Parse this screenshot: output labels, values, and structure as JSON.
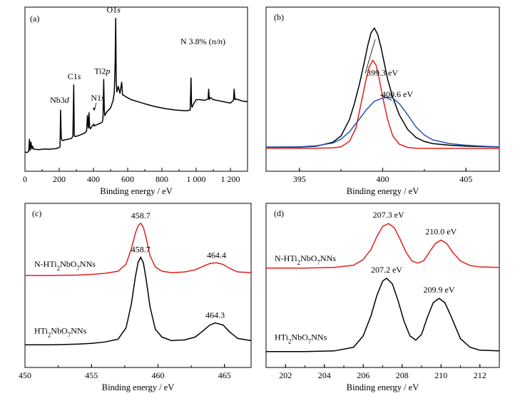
{
  "chart_data": [
    {
      "panel": "a",
      "type": "line",
      "panel_label": "(a)",
      "xlabel": "Binding energy / eV",
      "ylabel": "",
      "xlim": [
        0,
        1300
      ],
      "xticks": [
        0,
        200,
        400,
        600,
        800,
        1000,
        1200
      ],
      "xtick_labels": [
        "0",
        "200",
        "400",
        "600",
        "800",
        "1 000",
        "1 200"
      ],
      "note": "N 3.8% (n/n)",
      "series": [
        {
          "color": "#000000",
          "x": [
            0,
            8,
            15,
            22,
            26,
            30,
            35,
            40,
            44,
            50,
            60,
            80,
            100,
            120,
            140,
            160,
            180,
            195,
            205,
            208,
            212,
            216,
            220,
            230,
            250,
            270,
            280,
            285,
            288,
            291,
            296,
            310,
            330,
            350,
            360,
            365,
            370,
            374,
            378,
            383,
            387,
            393,
            398,
            402,
            406,
            410,
            420,
            440,
            452,
            456,
            460,
            463,
            466,
            470,
            480,
            500,
            515,
            522,
            527,
            530,
            533,
            537,
            545,
            555,
            565,
            570,
            578,
            590,
            620,
            660,
            700,
            760,
            820,
            880,
            940,
            965,
            970,
            973,
            976,
            980,
            985,
            1000,
            1020,
            1050,
            1070,
            1073,
            1077,
            1082,
            1100,
            1140,
            1180,
            1200,
            1218,
            1222,
            1226,
            1232,
            1245,
            1270,
            1300
          ],
          "y": [
            4,
            3.5,
            3.6,
            4.5,
            13,
            5,
            11,
            6,
            8,
            6,
            5.8,
            5.5,
            5.8,
            6,
            5.8,
            6,
            6.3,
            6.8,
            7.5,
            34,
            14,
            12.5,
            12,
            12.5,
            13,
            13.5,
            15,
            52,
            16,
            15,
            15,
            15.5,
            16.5,
            17.5,
            19,
            30,
            21,
            32,
            21.5,
            20.5,
            21.5,
            22.5,
            23,
            24,
            22.5,
            23,
            23.5,
            24.5,
            25.5,
            29,
            56,
            36,
            30,
            31,
            33,
            35.5,
            41,
            47,
            70,
            100,
            55,
            47,
            51,
            46,
            54,
            45,
            44.5,
            43.5,
            41.5,
            40,
            38.5,
            36.5,
            35,
            34,
            33.5,
            34,
            57,
            38,
            36,
            37,
            38.5,
            41.5,
            41.5,
            41,
            42,
            49,
            41.5,
            43,
            41.5,
            40.5,
            39.5,
            39,
            41,
            49,
            41.5,
            42,
            41.5,
            40.5,
            40
          ]
        }
      ],
      "annotations": [
        {
          "text": "Nb3d",
          "x": 210,
          "y": 34
        },
        {
          "text": "C1s",
          "x": 288,
          "y": 52
        },
        {
          "text": "N1s",
          "x": 400,
          "y": 33
        },
        {
          "text": "Ti2p",
          "x": 460,
          "y": 56
        },
        {
          "text": "O1s",
          "x": 530,
          "y": 100
        }
      ]
    },
    {
      "panel": "b",
      "type": "line",
      "panel_label": "(b)",
      "xlabel": "Binding energy / eV",
      "ylabel": "",
      "xlim": [
        393,
        407
      ],
      "xticks": [
        395,
        400,
        405
      ],
      "xtick_labels": [
        "395",
        "400",
        "405"
      ],
      "series": [
        {
          "color": "#000000",
          "x": [
            393,
            394,
            395,
            396,
            397,
            397.5,
            398,
            398.3,
            398.6,
            398.9,
            399.1,
            399.3,
            399.5,
            399.7,
            399.9,
            400.1,
            400.3,
            400.6,
            401,
            401.5,
            402,
            402.5,
            403,
            404,
            405,
            406,
            407
          ],
          "y": [
            1,
            1,
            1,
            1.5,
            4,
            8,
            18,
            28,
            40,
            54,
            64,
            72,
            75,
            71,
            63,
            53,
            43,
            32,
            21,
            12,
            7,
            4.5,
            3.2,
            2.2,
            1.6,
            1.3,
            1.1
          ]
        },
        {
          "color": "#e0201b",
          "x": [
            393,
            396,
            397,
            397.5,
            398,
            398.4,
            398.7,
            399,
            399.2,
            399.4,
            399.6,
            399.8,
            400,
            400.3,
            400.6,
            401,
            401.5,
            402,
            403,
            405,
            407
          ],
          "y": [
            0.3,
            0.3,
            0.5,
            1.2,
            4.5,
            13,
            28,
            43,
            51,
            55,
            52,
            43,
            32,
            18,
            8,
            2.8,
            0.8,
            0.3,
            0.2,
            0.2,
            0.2
          ]
        },
        {
          "color": "#2554b5",
          "x": [
            393,
            395,
            396,
            397,
            397.5,
            398,
            398.5,
            399,
            399.5,
            400,
            400.3,
            400.6,
            401,
            401.5,
            402,
            402.5,
            403,
            404,
            405,
            406,
            407
          ],
          "y": [
            1,
            1.2,
            1.8,
            3.5,
            6,
            10.5,
            17,
            24,
            29.5,
            31.5,
            32,
            31.5,
            28,
            21,
            13.5,
            8.5,
            5.5,
            3.2,
            2.2,
            1.6,
            1.2
          ]
        }
      ],
      "annotations": [
        {
          "text": "399.3 eV",
          "x": 399.3,
          "y": 75
        },
        {
          "text": "400.6 eV",
          "x": 400.6,
          "y": 32
        }
      ]
    },
    {
      "panel": "c",
      "type": "line",
      "panel_label": "(c)",
      "xlabel": "Binding energy / eV",
      "ylabel": "",
      "xlim": [
        450,
        467
      ],
      "xticks": [
        450,
        455,
        460,
        465
      ],
      "xtick_labels": [
        "450",
        "455",
        "460",
        "465"
      ],
      "series": [
        {
          "name": "N-HTi2NbO7NNs",
          "color": "#e0201b",
          "x": [
            450,
            452,
            454,
            455,
            456,
            457,
            457.6,
            458.0,
            458.3,
            458.5,
            458.7,
            458.9,
            459.1,
            459.4,
            459.8,
            460.3,
            461,
            462,
            462.8,
            463.4,
            463.9,
            464.4,
            464.9,
            465.4,
            466,
            467
          ],
          "y": [
            57,
            57,
            57.3,
            57.8,
            58.5,
            60,
            65,
            76,
            87,
            92,
            94,
            91,
            84,
            71,
            63,
            60,
            59,
            59.5,
            61,
            63.5,
            65.5,
            66,
            64.8,
            62,
            59.5,
            59
          ]
        },
        {
          "name": "HTi2NbO7NNs",
          "color": "#000000",
          "x": [
            450,
            452,
            454,
            455,
            456,
            457,
            457.6,
            458.0,
            458.3,
            458.5,
            458.7,
            458.9,
            459.1,
            459.4,
            459.8,
            460.3,
            461,
            462,
            462.8,
            463.4,
            463.9,
            464.3,
            464.9,
            465.4,
            466,
            467
          ],
          "y": [
            8,
            8,
            8.5,
            9,
            10,
            12,
            20,
            37,
            56,
            66,
            70,
            66,
            55,
            35,
            19,
            13.5,
            11,
            11.5,
            13.5,
            18,
            22,
            23.5,
            22,
            17,
            12.5,
            11
          ]
        }
      ],
      "annotations": [
        {
          "text": "458.7",
          "x": 458.7,
          "y": 94
        },
        {
          "text": "464.4",
          "x": 464.4,
          "y": 66
        },
        {
          "text": "458.7",
          "x": 458.7,
          "y": 70
        },
        {
          "text": "464.3",
          "x": 464.3,
          "y": 23.5
        }
      ],
      "legend": [
        {
          "text": "N-HTi₂NbO₇NNs",
          "y": 60
        },
        {
          "text": "HTi₂NbO₇NNs",
          "y": 13
        }
      ]
    },
    {
      "panel": "d",
      "type": "line",
      "panel_label": "(d)",
      "xlabel": "Binding energy / eV",
      "ylabel": "",
      "xlim": [
        201,
        213
      ],
      "xticks": [
        202,
        204,
        206,
        208,
        210,
        212
      ],
      "xtick_labels": [
        "202",
        "204",
        "206",
        "208",
        "210",
        "212"
      ],
      "series": [
        {
          "name": "N-HTi2NbO7NNs",
          "color": "#e0201b",
          "x": [
            201,
            203,
            204.5,
            205.5,
            206,
            206.4,
            206.7,
            207.0,
            207.3,
            207.6,
            207.9,
            208.2,
            208.5,
            208.8,
            209.1,
            209.4,
            209.7,
            210.0,
            210.3,
            210.6,
            211,
            211.5,
            212,
            213
          ],
          "y": [
            59,
            59,
            59.5,
            61,
            65,
            72,
            81,
            88,
            90,
            87,
            79,
            70,
            64,
            62.5,
            64,
            70,
            76,
            78.5,
            76,
            70,
            64,
            60.8,
            59.8,
            59.5
          ]
        },
        {
          "name": "HTi2NbO7NNs",
          "color": "#000000",
          "x": [
            201,
            203,
            204.5,
            205.5,
            206,
            206.4,
            206.7,
            207.0,
            207.2,
            207.5,
            207.8,
            208.1,
            208.4,
            208.7,
            209.0,
            209.3,
            209.6,
            209.9,
            210.2,
            210.5,
            211,
            211.5,
            212,
            213
          ],
          "y": [
            1,
            1,
            1.5,
            4,
            12,
            26,
            40,
            50,
            52,
            48,
            36,
            22,
            12,
            9,
            13,
            25,
            35,
            38,
            35,
            26,
            10,
            4,
            2,
            1.5
          ]
        }
      ],
      "annotations": [
        {
          "text": "207.3 eV",
          "x": 207.3,
          "y": 90
        },
        {
          "text": "210.0 eV",
          "x": 210.0,
          "y": 78.5
        },
        {
          "text": "207.2 eV",
          "x": 207.2,
          "y": 52
        },
        {
          "text": "209.9 eV",
          "x": 209.9,
          "y": 38
        }
      ],
      "legend": [
        {
          "text": "N-HTi₂NbO₇NNs",
          "y": 60
        },
        {
          "text": "HTi₂NbO₇NNs",
          "y": 5
        }
      ]
    }
  ]
}
